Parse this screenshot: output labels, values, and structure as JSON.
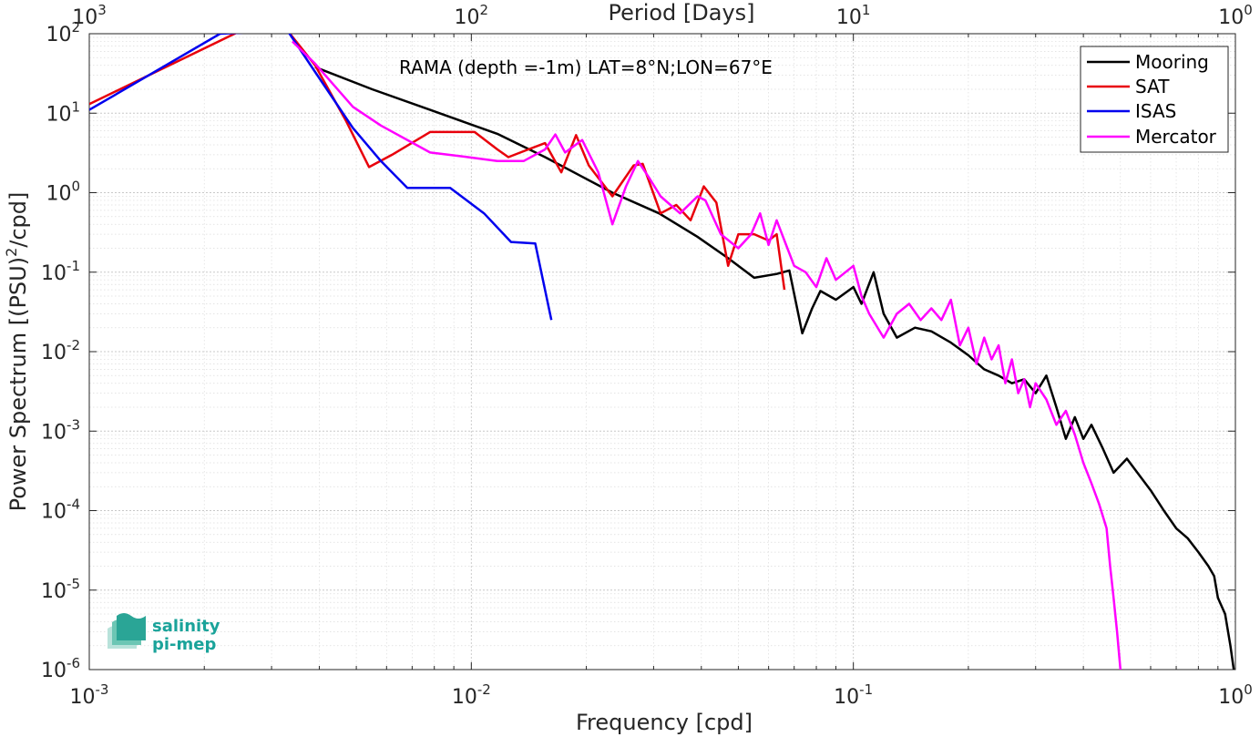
{
  "chart_data": {
    "type": "line",
    "title": "",
    "annotation": "RAMA (depth =-1m) LAT=8°N;LON=67°E",
    "xlabel": "Frequency [cpd]",
    "ylabel": "Power Spectrum [(PSU)",
    "ylabel_sup": "2",
    "ylabel_tail": "/cpd]",
    "top_xlabel": "Period [Days]",
    "x_scale": "log",
    "y_scale": "log",
    "xlim": [
      0.001,
      1
    ],
    "ylim": [
      1e-06,
      100
    ],
    "grid": true,
    "legend_position": "top-right",
    "x_ticks": [
      {
        "base": "10",
        "exp": "-3",
        "value": 0.001
      },
      {
        "base": "10",
        "exp": "-2",
        "value": 0.01
      },
      {
        "base": "10",
        "exp": "-1",
        "value": 0.1
      },
      {
        "base": "10",
        "exp": "0",
        "value": 1
      }
    ],
    "top_ticks": [
      {
        "base": "10",
        "exp": "3",
        "value": 0.001
      },
      {
        "base": "10",
        "exp": "2",
        "value": 0.01
      },
      {
        "base": "10",
        "exp": "1",
        "value": 0.1
      },
      {
        "base": "10",
        "exp": "0",
        "value": 1
      }
    ],
    "y_ticks": [
      {
        "base": "10",
        "exp": "-6",
        "value": 1e-06
      },
      {
        "base": "10",
        "exp": "-5",
        "value": 1e-05
      },
      {
        "base": "10",
        "exp": "-4",
        "value": 0.0001
      },
      {
        "base": "10",
        "exp": "-3",
        "value": 0.001
      },
      {
        "base": "10",
        "exp": "-2",
        "value": 0.01
      },
      {
        "base": "10",
        "exp": "-1",
        "value": 0.1
      },
      {
        "base": "10",
        "exp": "0",
        "value": 1
      },
      {
        "base": "10",
        "exp": "1",
        "value": 10
      },
      {
        "base": "10",
        "exp": "2",
        "value": 100
      }
    ],
    "series": [
      {
        "name": "Mooring",
        "color": "#000000",
        "points": [
          [
            0.0039,
            38
          ],
          [
            0.0055,
            20
          ],
          [
            0.0078,
            11
          ],
          [
            0.0117,
            5.5
          ],
          [
            0.0156,
            2.8
          ],
          [
            0.0234,
            1.0
          ],
          [
            0.031,
            0.55
          ],
          [
            0.039,
            0.28
          ],
          [
            0.047,
            0.15
          ],
          [
            0.055,
            0.085
          ],
          [
            0.063,
            0.095
          ],
          [
            0.068,
            0.105
          ],
          [
            0.0735,
            0.017
          ],
          [
            0.078,
            0.035
          ],
          [
            0.082,
            0.058
          ],
          [
            0.09,
            0.045
          ],
          [
            0.1,
            0.065
          ],
          [
            0.105,
            0.04
          ],
          [
            0.113,
            0.1
          ],
          [
            0.12,
            0.03
          ],
          [
            0.13,
            0.015
          ],
          [
            0.145,
            0.02
          ],
          [
            0.16,
            0.018
          ],
          [
            0.18,
            0.013
          ],
          [
            0.2,
            0.009
          ],
          [
            0.22,
            0.006
          ],
          [
            0.24,
            0.005
          ],
          [
            0.26,
            0.004
          ],
          [
            0.28,
            0.0045
          ],
          [
            0.3,
            0.003
          ],
          [
            0.32,
            0.005
          ],
          [
            0.34,
            0.002
          ],
          [
            0.36,
            0.0008
          ],
          [
            0.38,
            0.0015
          ],
          [
            0.4,
            0.0008
          ],
          [
            0.42,
            0.0012
          ],
          [
            0.45,
            0.0006
          ],
          [
            0.48,
            0.0003
          ],
          [
            0.52,
            0.00045
          ],
          [
            0.56,
            0.00028
          ],
          [
            0.6,
            0.00018
          ],
          [
            0.65,
            0.0001
          ],
          [
            0.7,
            6e-05
          ],
          [
            0.75,
            4.5e-05
          ],
          [
            0.8,
            3e-05
          ],
          [
            0.85,
            2e-05
          ],
          [
            0.88,
            1.5e-05
          ],
          [
            0.9,
            8e-06
          ],
          [
            0.94,
            5e-06
          ],
          [
            0.97,
            2e-06
          ],
          [
            0.99,
            1e-06
          ]
        ]
      },
      {
        "name": "SAT",
        "color": "#e8000b",
        "points": [
          [
            0.001,
            13
          ],
          [
            0.0025,
            110
          ],
          [
            0.0033,
            110
          ],
          [
            0.0039,
            40
          ],
          [
            0.0047,
            8
          ],
          [
            0.0054,
            2.1
          ],
          [
            0.0062,
            3
          ],
          [
            0.0078,
            5.8
          ],
          [
            0.0094,
            5.8
          ],
          [
            0.0102,
            5.8
          ],
          [
            0.0117,
            3.5
          ],
          [
            0.0125,
            2.8
          ],
          [
            0.0141,
            3.5
          ],
          [
            0.0156,
            4.2
          ],
          [
            0.0172,
            1.8
          ],
          [
            0.0188,
            5.3
          ],
          [
            0.0203,
            2.2
          ],
          [
            0.0234,
            0.9
          ],
          [
            0.0266,
            2.2
          ],
          [
            0.0281,
            2.3
          ],
          [
            0.0313,
            0.55
          ],
          [
            0.0344,
            0.7
          ],
          [
            0.0375,
            0.45
          ],
          [
            0.0406,
            1.2
          ],
          [
            0.0438,
            0.75
          ],
          [
            0.047,
            0.12
          ],
          [
            0.05,
            0.3
          ],
          [
            0.055,
            0.3
          ],
          [
            0.06,
            0.25
          ],
          [
            0.063,
            0.3
          ],
          [
            0.066,
            0.06
          ]
        ]
      },
      {
        "name": "ISAS",
        "color": "#0000ee",
        "points": [
          [
            0.001,
            11
          ],
          [
            0.0022,
            100
          ],
          [
            0.0033,
            110
          ],
          [
            0.0039,
            33
          ],
          [
            0.0049,
            6.5
          ],
          [
            0.0058,
            2.5
          ],
          [
            0.0068,
            1.15
          ],
          [
            0.0088,
            1.15
          ],
          [
            0.0108,
            0.55
          ],
          [
            0.0127,
            0.24
          ],
          [
            0.0147,
            0.23
          ],
          [
            0.0162,
            0.025
          ]
        ]
      },
      {
        "name": "Mercator",
        "color": "#ff00ff",
        "points": [
          [
            0.0034,
            80
          ],
          [
            0.0039,
            42
          ],
          [
            0.0049,
            12
          ],
          [
            0.0058,
            7
          ],
          [
            0.0078,
            3.2
          ],
          [
            0.0098,
            2.8
          ],
          [
            0.0117,
            2.5
          ],
          [
            0.0137,
            2.5
          ],
          [
            0.0156,
            3.5
          ],
          [
            0.0166,
            5.4
          ],
          [
            0.0176,
            3.2
          ],
          [
            0.0195,
            4.6
          ],
          [
            0.0215,
            1.8
          ],
          [
            0.0234,
            0.4
          ],
          [
            0.0254,
            1.2
          ],
          [
            0.0273,
            2.5
          ],
          [
            0.0293,
            1.5
          ],
          [
            0.0313,
            0.9
          ],
          [
            0.0332,
            0.7
          ],
          [
            0.0352,
            0.55
          ],
          [
            0.0391,
            0.9
          ],
          [
            0.041,
            0.8
          ],
          [
            0.045,
            0.3
          ],
          [
            0.05,
            0.2
          ],
          [
            0.054,
            0.3
          ],
          [
            0.057,
            0.55
          ],
          [
            0.06,
            0.22
          ],
          [
            0.063,
            0.45
          ],
          [
            0.066,
            0.25
          ],
          [
            0.07,
            0.12
          ],
          [
            0.075,
            0.1
          ],
          [
            0.08,
            0.065
          ],
          [
            0.085,
            0.15
          ],
          [
            0.09,
            0.08
          ],
          [
            0.1,
            0.12
          ],
          [
            0.105,
            0.05
          ],
          [
            0.11,
            0.03
          ],
          [
            0.12,
            0.015
          ],
          [
            0.13,
            0.03
          ],
          [
            0.14,
            0.04
          ],
          [
            0.15,
            0.025
          ],
          [
            0.16,
            0.035
          ],
          [
            0.17,
            0.025
          ],
          [
            0.18,
            0.045
          ],
          [
            0.19,
            0.012
          ],
          [
            0.2,
            0.02
          ],
          [
            0.21,
            0.007
          ],
          [
            0.22,
            0.015
          ],
          [
            0.23,
            0.008
          ],
          [
            0.24,
            0.012
          ],
          [
            0.25,
            0.004
          ],
          [
            0.26,
            0.008
          ],
          [
            0.27,
            0.003
          ],
          [
            0.28,
            0.0045
          ],
          [
            0.29,
            0.002
          ],
          [
            0.3,
            0.004
          ],
          [
            0.32,
            0.0025
          ],
          [
            0.34,
            0.0012
          ],
          [
            0.36,
            0.0018
          ],
          [
            0.38,
            0.0009
          ],
          [
            0.4,
            0.0004
          ],
          [
            0.42,
            0.00022
          ],
          [
            0.44,
            0.00012
          ],
          [
            0.46,
            6e-05
          ],
          [
            0.47,
            2e-05
          ],
          [
            0.48,
            8e-06
          ],
          [
            0.49,
            3e-06
          ],
          [
            0.5,
            1e-06
          ]
        ]
      }
    ]
  },
  "logo": {
    "line1": "salinity",
    "line2": "pi-mep"
  }
}
